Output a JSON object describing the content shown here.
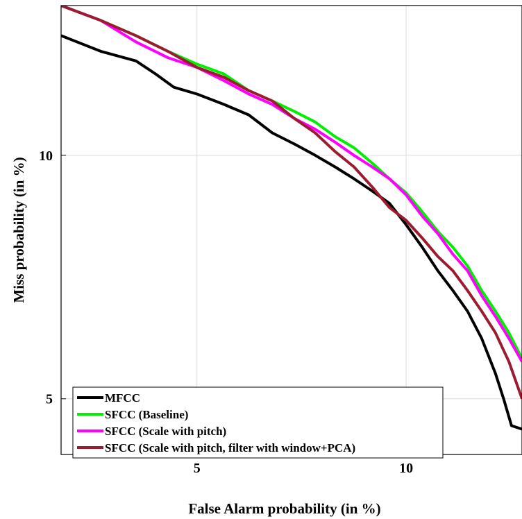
{
  "chart_data": {
    "type": "line",
    "title": "",
    "xlabel": "False Alarm probability (in %)",
    "ylabel": "Miss probability (in %)",
    "xlim": [
      3,
      14
    ],
    "ylim": [
      4.2,
      14.5
    ],
    "x_ticks": [
      5,
      10
    ],
    "x_tick_labels": [
      "5",
      "10"
    ],
    "y_ticks": [
      5,
      10
    ],
    "y_tick_labels": [
      "5",
      "10"
    ],
    "grid": true,
    "legend_position": "bottom-left",
    "series": [
      {
        "name": "MFCC",
        "color": "#000000",
        "x": [
          3.0,
          3.5,
          4.0,
          4.3,
          4.6,
          5.0,
          5.5,
          6.0,
          6.5,
          7.0,
          7.5,
          8.0,
          8.5,
          9.0,
          9.5,
          10.0,
          10.5,
          11.0,
          11.5,
          12.0,
          12.5,
          13.0,
          13.3,
          13.6,
          14.0
        ],
        "y": [
          13.5,
          13.0,
          12.7,
          12.3,
          11.9,
          11.7,
          11.4,
          11.1,
          10.6,
          10.3,
          10.0,
          9.7,
          9.4,
          9.1,
          8.8,
          8.3,
          7.8,
          7.3,
          6.9,
          6.5,
          6.0,
          5.4,
          5.0,
          4.6,
          4.55
        ]
      },
      {
        "name": "SFCC (Baseline)",
        "color": "#00ee00",
        "x": [
          3.0,
          3.5,
          4.0,
          4.5,
          5.0,
          5.5,
          6.0,
          6.5,
          7.0,
          7.5,
          8.0,
          8.5,
          9.0,
          9.5,
          10.0,
          10.5,
          11.0,
          11.5,
          12.0,
          12.5,
          13.0,
          13.5,
          14.0
        ],
        "y": [
          14.5,
          14.0,
          13.5,
          13.0,
          12.6,
          12.3,
          11.8,
          11.5,
          11.2,
          10.9,
          10.5,
          10.2,
          9.8,
          9.4,
          9.05,
          8.6,
          8.15,
          7.8,
          7.4,
          6.9,
          6.5,
          6.1,
          5.65
        ]
      },
      {
        "name": "SFCC (Scale with pitch)",
        "color": "#ff00ff",
        "x": [
          3.0,
          3.5,
          4.0,
          4.5,
          5.0,
          5.5,
          6.0,
          6.5,
          7.0,
          7.5,
          8.0,
          8.5,
          9.0,
          9.5,
          10.0,
          10.5,
          11.0,
          11.5,
          12.0,
          12.5,
          13.0,
          13.5,
          14.0
        ],
        "y": [
          14.5,
          14.0,
          13.3,
          12.8,
          12.5,
          12.1,
          11.7,
          11.4,
          11.0,
          10.7,
          10.35,
          10.0,
          9.7,
          9.4,
          9.0,
          8.5,
          8.1,
          7.65,
          7.3,
          6.8,
          6.4,
          6.0,
          5.6
        ]
      },
      {
        "name": "SFCC (Scale with pitch, filter with window+PCA)",
        "color": "#9b1b30",
        "x": [
          3.0,
          3.5,
          4.0,
          4.5,
          5.0,
          5.5,
          6.0,
          6.5,
          7.0,
          7.5,
          8.0,
          8.5,
          9.0,
          9.5,
          10.0,
          10.5,
          11.0,
          11.5,
          12.0,
          12.5,
          13.0,
          13.5,
          14.0
        ],
        "y": [
          14.5,
          14.0,
          13.5,
          13.0,
          12.5,
          12.2,
          11.8,
          11.5,
          11.0,
          10.6,
          10.1,
          9.7,
          9.2,
          8.7,
          8.4,
          8.0,
          7.6,
          7.3,
          6.9,
          6.5,
          6.1,
          5.6,
          5.0
        ]
      }
    ]
  }
}
